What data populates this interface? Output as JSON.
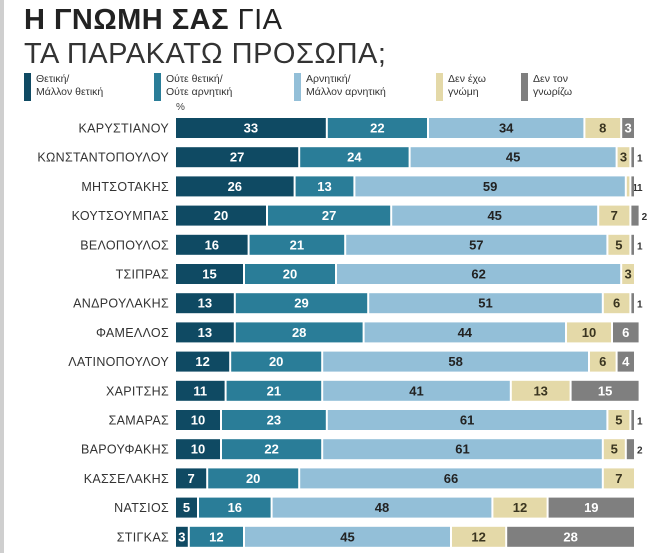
{
  "chart_data": {
    "type": "bar",
    "orientation": "horizontal",
    "stacked": true,
    "title_bold": "Η ΓΝΩΜΗ ΣΑΣ",
    "title_rest": "ΓΙΑ",
    "subtitle": "ΤΑ ΠΑΡΑΚΑΤΩ ΠΡΟΣΩΠΑ;",
    "unit": "%",
    "xlim": [
      0,
      100
    ],
    "grid": false,
    "legend": "top",
    "categories": [
      "ΚΑΡΥΣΤΙΑΝΟΥ",
      "ΚΩΝΣΤΑΝΤΟΠΟΥΛΟΥ",
      "ΜΗΤΣΟΤΑΚΗΣ",
      "ΚΟΥΤΣΟΥΜΠΑΣ",
      "ΒΕΛΟΠΟΥΛΟΣ",
      "ΤΣΙΠΡΑΣ",
      "ΑΝΔΡΟΥΛΑΚΗΣ",
      "ΦΑΜΕΛΛΟΣ",
      "ΛΑΤΙΝΟΠΟΥΛΟΥ",
      "ΧΑΡΙΤΣΗΣ",
      "ΣΑΜΑΡΑΣ",
      "ΒΑΡΟΥΦΑΚΗΣ",
      "ΚΑΣΣΕΛΑΚΗΣ",
      "ΝΑΤΣΙΟΣ",
      "ΣΤΙΓΚΑΣ"
    ],
    "series": [
      {
        "name": "Θετική/ Μάλλον θετική",
        "color": "#0f4a63",
        "text": "#ffffff",
        "values": [
          33,
          27,
          26,
          20,
          16,
          15,
          13,
          13,
          12,
          11,
          10,
          10,
          7,
          5,
          3
        ]
      },
      {
        "name": "Ούτε θετική/ Ούτε αρνητική",
        "color": "#2a7d98",
        "text": "#ffffff",
        "values": [
          22,
          24,
          13,
          27,
          21,
          20,
          29,
          28,
          20,
          21,
          23,
          22,
          20,
          16,
          12
        ]
      },
      {
        "name": "Αρνητική/ Μάλλον αρνητική",
        "color": "#93bfd8",
        "text": "#222222",
        "values": [
          34,
          45,
          59,
          45,
          57,
          62,
          51,
          44,
          58,
          41,
          61,
          61,
          66,
          48,
          45
        ]
      },
      {
        "name": "Δεν έχω γνώμη",
        "color": "#e4d9a8",
        "text": "#3a3520",
        "values": [
          8,
          3,
          1,
          7,
          5,
          3,
          6,
          10,
          6,
          13,
          5,
          5,
          7,
          12,
          12
        ]
      },
      {
        "name": "Δεν τον γνωρίζω",
        "color": "#7f7f7f",
        "text": "#ffffff",
        "values": [
          3,
          1,
          1,
          2,
          1,
          0,
          1,
          6,
          4,
          15,
          1,
          2,
          0,
          19,
          28
        ]
      }
    ]
  }
}
